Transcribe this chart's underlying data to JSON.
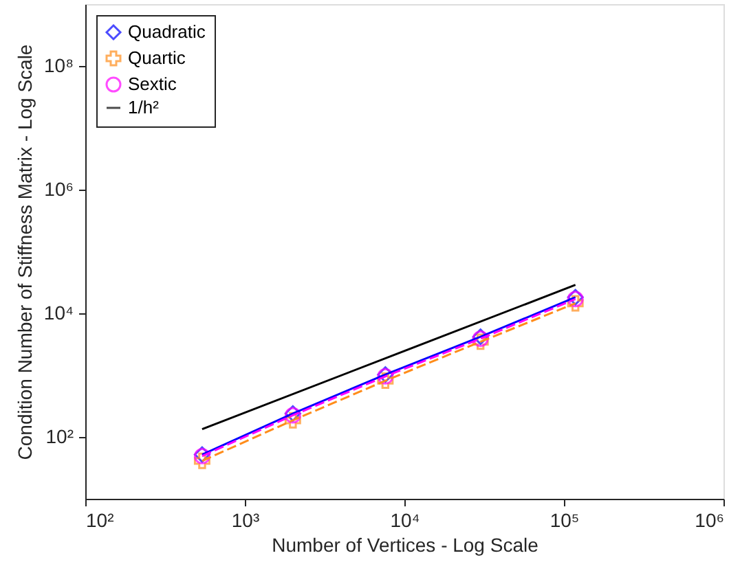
{
  "chart_data": {
    "type": "line",
    "xlabel": "Number of Vertices - Log Scale",
    "ylabel": "Condition Number of Stiffness Matrix - Log Scale",
    "x": [
      540,
      2000,
      7600,
      30000,
      118000
    ],
    "series": [
      {
        "name": "Quadratic",
        "color": "#0000ff",
        "values": [
          52,
          240,
          1020,
          4170,
          18200
        ],
        "marker": "diamond",
        "line_style": "solid"
      },
      {
        "name": "Quartic",
        "color": "#ff8c1a",
        "values": [
          41,
          186,
          813,
          3470,
          14500
        ],
        "marker": "cross",
        "line_style": "dashed"
      },
      {
        "name": "Sextic",
        "color": "#ff00ff",
        "values": [
          49,
          224,
          955,
          3890,
          17000
        ],
        "marker": "circle",
        "line_style": "dashed"
      },
      {
        "name": "1/h²",
        "color": "#000000",
        "x": [
          540,
          118000
        ],
        "values": [
          134,
          28800
        ],
        "marker": "none",
        "line_style": "solid"
      }
    ],
    "log": "xy",
    "grid": false,
    "legend": "top left",
    "xlim": [
      100,
      1000000
    ],
    "ylim": [
      10,
      1000000000
    ],
    "xticks": [
      {
        "value": 100,
        "label": "10²"
      },
      {
        "value": 1000,
        "label": "10³"
      },
      {
        "value": 10000,
        "label": "10⁴"
      },
      {
        "value": 100000,
        "label": "10⁵"
      },
      {
        "value": 1000000,
        "label": "10⁶"
      }
    ],
    "yticks": [
      {
        "value": 100,
        "label": "10²"
      },
      {
        "value": 10000,
        "label": "10⁴"
      },
      {
        "value": 1000000,
        "label": "10⁶"
      },
      {
        "value": 100000000,
        "label": "10⁸"
      }
    ]
  }
}
